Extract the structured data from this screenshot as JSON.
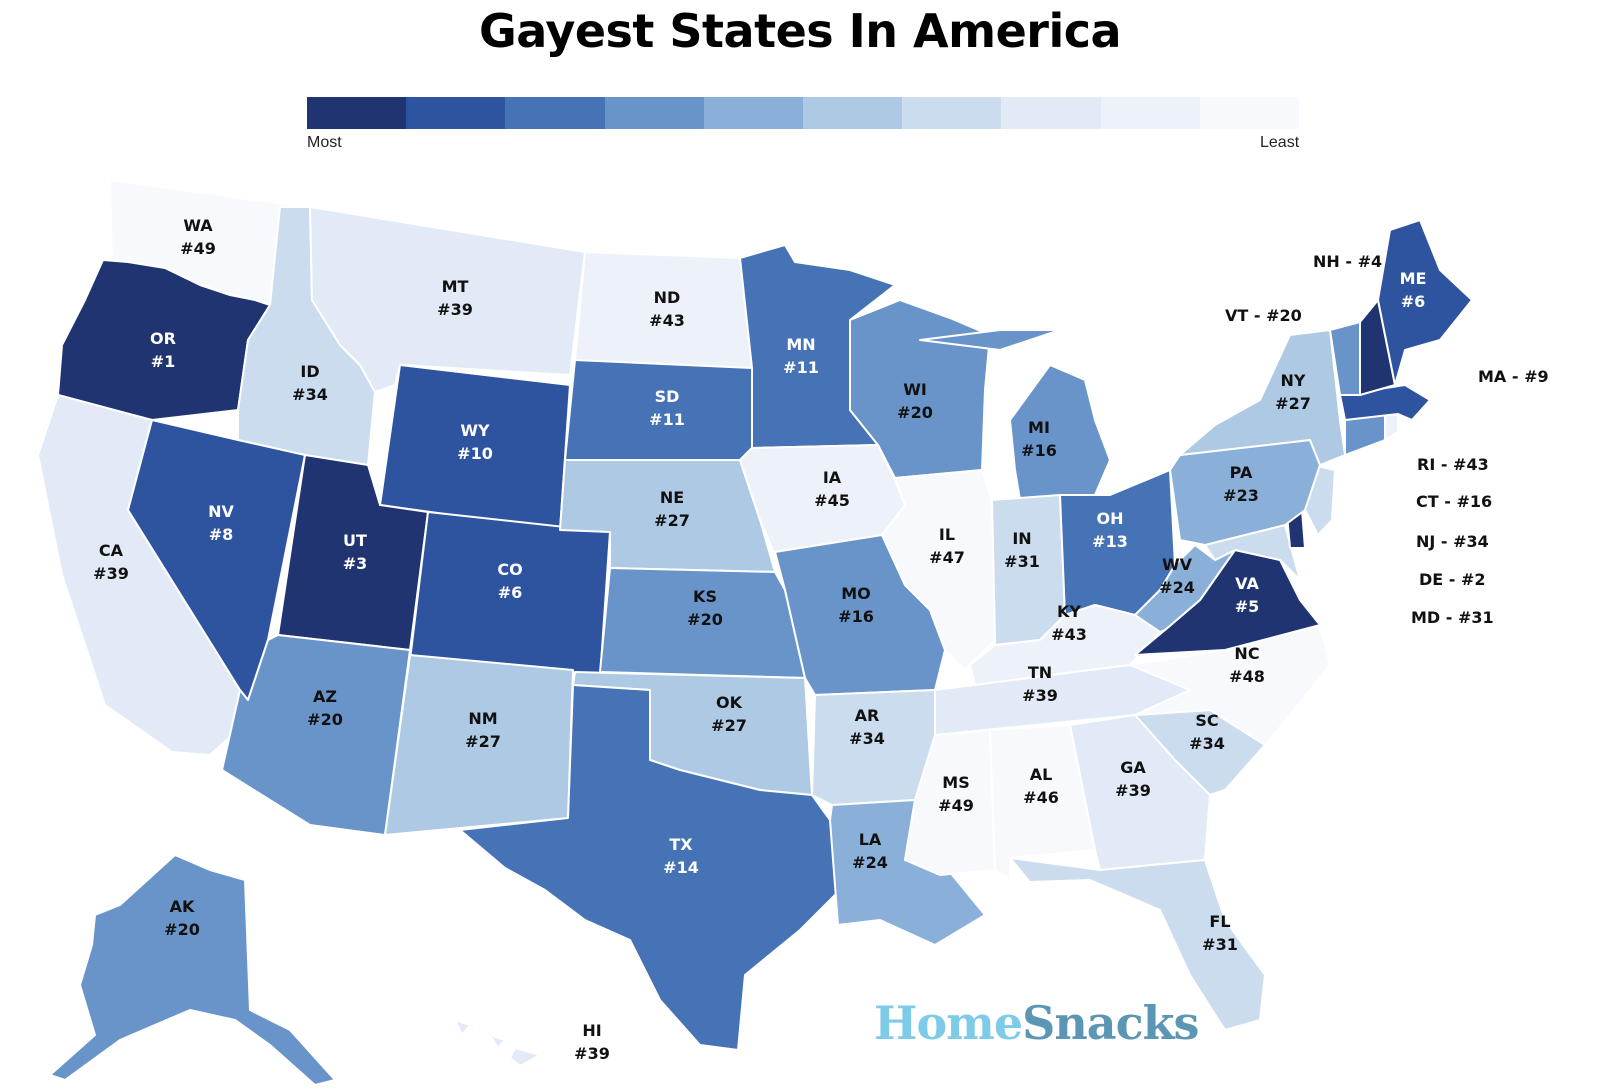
{
  "title": "Gayest States In America",
  "legend": {
    "most_label": "Most",
    "least_label": "Least",
    "colors": [
      "#1f3470",
      "#2e54a0",
      "#4673b6",
      "#6894c9",
      "#8ab0d9",
      "#adc9e4",
      "#cadcee",
      "#e1eaf6",
      "#edf2fa",
      "#f7f9fd"
    ]
  },
  "states": [
    {
      "code": "WA",
      "label": "WA",
      "rank": "#49",
      "color": "#f7f9fd"
    },
    {
      "code": "OR",
      "label": "OR",
      "rank": "#1",
      "color": "#1f3470"
    },
    {
      "code": "CA",
      "label": "CA",
      "rank": "#39",
      "color": "#e1eaf6"
    },
    {
      "code": "ID",
      "label": "ID",
      "rank": "#34",
      "color": "#cadcee"
    },
    {
      "code": "NV",
      "label": "NV",
      "rank": "#8",
      "color": "#2e54a0"
    },
    {
      "code": "MT",
      "label": "MT",
      "rank": "#39",
      "color": "#e1eaf6"
    },
    {
      "code": "WY",
      "label": "WY",
      "rank": "#10",
      "color": "#2e54a0"
    },
    {
      "code": "UT",
      "label": "UT",
      "rank": "#3",
      "color": "#1f3470"
    },
    {
      "code": "AZ",
      "label": "AZ",
      "rank": "#20",
      "color": "#6894c9"
    },
    {
      "code": "CO",
      "label": "CO",
      "rank": "#6",
      "color": "#2e54a0"
    },
    {
      "code": "NM",
      "label": "NM",
      "rank": "#27",
      "color": "#adc9e4"
    },
    {
      "code": "ND",
      "label": "ND",
      "rank": "#43",
      "color": "#edf2fa"
    },
    {
      "code": "SD",
      "label": "SD",
      "rank": "#11",
      "color": "#4673b6"
    },
    {
      "code": "NE",
      "label": "NE",
      "rank": "#27",
      "color": "#adc9e4"
    },
    {
      "code": "KS",
      "label": "KS",
      "rank": "#20",
      "color": "#6894c9"
    },
    {
      "code": "OK",
      "label": "OK",
      "rank": "#27",
      "color": "#adc9e4"
    },
    {
      "code": "TX",
      "label": "TX",
      "rank": "#14",
      "color": "#4673b6"
    },
    {
      "code": "MN",
      "label": "MN",
      "rank": "#11",
      "color": "#4673b6"
    },
    {
      "code": "IA",
      "label": "IA",
      "rank": "#45",
      "color": "#edf2fa"
    },
    {
      "code": "MO",
      "label": "MO",
      "rank": "#16",
      "color": "#6894c9"
    },
    {
      "code": "AR",
      "label": "AR",
      "rank": "#34",
      "color": "#cadcee"
    },
    {
      "code": "LA",
      "label": "LA",
      "rank": "#24",
      "color": "#8ab0d9"
    },
    {
      "code": "WI",
      "label": "WI",
      "rank": "#20",
      "color": "#6894c9"
    },
    {
      "code": "IL",
      "label": "IL",
      "rank": "#47",
      "color": "#f7f9fd"
    },
    {
      "code": "MI",
      "label": "MI",
      "rank": "#16",
      "color": "#6894c9"
    },
    {
      "code": "IN",
      "label": "IN",
      "rank": "#31",
      "color": "#cadcee"
    },
    {
      "code": "OH",
      "label": "OH",
      "rank": "#13",
      "color": "#4673b6"
    },
    {
      "code": "KY",
      "label": "KY",
      "rank": "#43",
      "color": "#edf2fa"
    },
    {
      "code": "TN",
      "label": "TN",
      "rank": "#39",
      "color": "#e1eaf6"
    },
    {
      "code": "MS",
      "label": "MS",
      "rank": "#49",
      "color": "#f7f9fd"
    },
    {
      "code": "AL",
      "label": "AL",
      "rank": "#46",
      "color": "#f7f9fd"
    },
    {
      "code": "GA",
      "label": "GA",
      "rank": "#39",
      "color": "#e1eaf6"
    },
    {
      "code": "FL",
      "label": "FL",
      "rank": "#31",
      "color": "#cadcee"
    },
    {
      "code": "SC",
      "label": "SC",
      "rank": "#34",
      "color": "#cadcee"
    },
    {
      "code": "NC",
      "label": "NC",
      "rank": "#48",
      "color": "#f7f9fd"
    },
    {
      "code": "VA",
      "label": "VA",
      "rank": "#5",
      "color": "#1f3470"
    },
    {
      "code": "WV",
      "label": "WV",
      "rank": "#24",
      "color": "#8ab0d9"
    },
    {
      "code": "PA",
      "label": "PA",
      "rank": "#23",
      "color": "#8ab0d9"
    },
    {
      "code": "NY",
      "label": "NY",
      "rank": "#27",
      "color": "#adc9e4"
    },
    {
      "code": "ME",
      "label": "ME",
      "rank": "#6",
      "color": "#2e54a0"
    },
    {
      "code": "AK",
      "label": "AK",
      "rank": "#20",
      "color": "#6894c9"
    },
    {
      "code": "HI",
      "label": "HI",
      "rank": "#39",
      "color": "#e1eaf6"
    }
  ],
  "small_states": [
    {
      "code": "NH",
      "text": "NH - #4",
      "color": "#1f3470"
    },
    {
      "code": "VT",
      "text": "VT - #20",
      "color": "#6894c9"
    },
    {
      "code": "MA",
      "text": "MA - #9",
      "color": "#2e54a0"
    },
    {
      "code": "RI",
      "text": "RI - #43",
      "color": "#edf2fa"
    },
    {
      "code": "CT",
      "text": "CT - #16",
      "color": "#6894c9"
    },
    {
      "code": "NJ",
      "text": "NJ - #34",
      "color": "#cadcee"
    },
    {
      "code": "DE",
      "text": "DE - #2",
      "color": "#1f3470"
    },
    {
      "code": "MD",
      "text": "MD - #31",
      "color": "#cadcee"
    }
  ],
  "brand": {
    "part1": "Home",
    "part2": "Snacks"
  }
}
